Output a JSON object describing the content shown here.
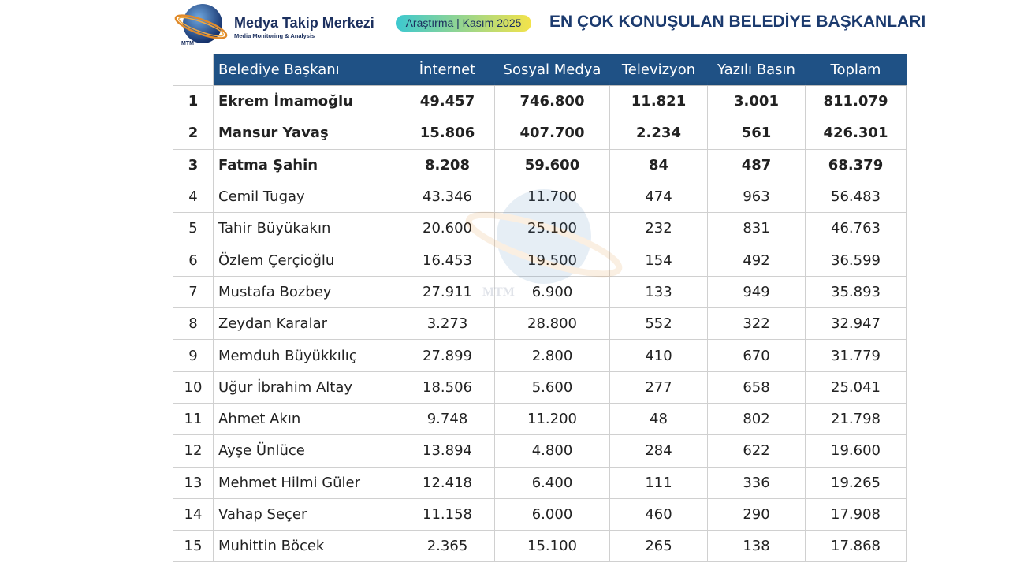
{
  "header": {
    "brand": "Medya Takip Merkezi",
    "tagline": "Media Monitoring & Analysis",
    "logo_text": "MTM",
    "badge": "Araştırma | Kasım 2025",
    "title": "EN ÇOK KONUŞULAN BELEDİYE BAŞKANLARI"
  },
  "table": {
    "columns": [
      "Belediye Başkanı",
      "İnternet",
      "Sosyal Medya",
      "Televizyon",
      "Yazılı Basın",
      "Toplam"
    ],
    "rows": [
      [
        "1",
        "Ekrem İmamoğlu",
        "49.457",
        "746.800",
        "11.821",
        "3.001",
        "811.079"
      ],
      [
        "2",
        "Mansur Yavaş",
        "15.806",
        "407.700",
        "2.234",
        "561",
        "426.301"
      ],
      [
        "3",
        "Fatma Şahin",
        "8.208",
        "59.600",
        "84",
        "487",
        "68.379"
      ],
      [
        "4",
        "Cemil Tugay",
        "43.346",
        "11.700",
        "474",
        "963",
        "56.483"
      ],
      [
        "5",
        "Tahir Büyükakın",
        "20.600",
        "25.100",
        "232",
        "831",
        "46.763"
      ],
      [
        "6",
        "Özlem Çerçioğlu",
        "16.453",
        "19.500",
        "154",
        "492",
        "36.599"
      ],
      [
        "7",
        "Mustafa Bozbey",
        "27.911",
        "6.900",
        "133",
        "949",
        "35.893"
      ],
      [
        "8",
        "Zeydan Karalar",
        "3.273",
        "28.800",
        "552",
        "322",
        "32.947"
      ],
      [
        "9",
        "Memduh Büyükkılıç",
        "27.899",
        "2.800",
        "410",
        "670",
        "31.779"
      ],
      [
        "10",
        "Uğur İbrahim Altay",
        "18.506",
        "5.600",
        "277",
        "658",
        "25.041"
      ],
      [
        "11",
        "Ahmet Akın",
        "9.748",
        "11.200",
        "48",
        "802",
        "21.798"
      ],
      [
        "12",
        "Ayşe Ünlüce",
        "13.894",
        "4.800",
        "284",
        "622",
        "19.600"
      ],
      [
        "13",
        "Mehmet Hilmi Güler",
        "12.418",
        "6.400",
        "111",
        "336",
        "19.265"
      ],
      [
        "14",
        "Vahap Seçer",
        "11.158",
        "6.000",
        "460",
        "290",
        "17.908"
      ],
      [
        "15",
        "Muhittin Böcek",
        "2.365",
        "15.100",
        "265",
        "138",
        "17.868"
      ]
    ]
  }
}
